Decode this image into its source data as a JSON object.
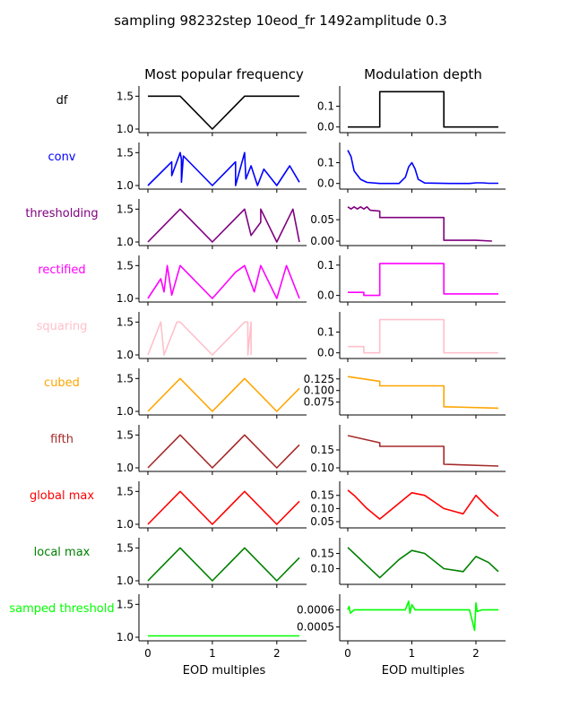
{
  "suptitle": "sampling 98232step 10eod_fr 1492amplitude 0.3",
  "columns": [
    "Most popular frequency",
    "Modulation depth"
  ],
  "xlabel": "EOD multiples",
  "chart_data": {
    "type": "line",
    "x_range": [
      0,
      2.35
    ],
    "x_ticks": [
      "0",
      "1",
      "2"
    ],
    "rows": [
      {
        "name": "df",
        "color": "#000000",
        "freq": {
          "y_ticks": [
            "1.0",
            "1.5"
          ],
          "ylim": [
            1.0,
            1.6
          ],
          "series": {
            "x": [
              0,
              0.5,
              1.0,
              1.5,
              2.35
            ],
            "y": [
              1.5,
              1.5,
              1.0,
              1.5,
              1.5
            ]
          }
        },
        "mod": {
          "y_ticks": [
            "0.0",
            "0.1"
          ],
          "ylim": [
            -0.01,
            0.18
          ],
          "series": {
            "x": [
              0,
              0.5,
              0.5,
              1.5,
              1.5,
              2.35
            ],
            "y": [
              0,
              0,
              0.17,
              0.17,
              0,
              0
            ]
          }
        }
      },
      {
        "name": "conv",
        "color": "#0000ff",
        "freq": {
          "y_ticks": [
            "1.0",
            "1.5"
          ],
          "ylim": [
            1.0,
            1.6
          ],
          "series": {
            "x": [
              0,
              0.37,
              0.37,
              0.5,
              0.52,
              0.52,
              0.55,
              1.0,
              1.36,
              1.36,
              1.5,
              1.52,
              1.6,
              1.7,
              1.8,
              2.0,
              2.2,
              2.35
            ],
            "y": [
              1.0,
              1.36,
              1.15,
              1.5,
              1.4,
              1.05,
              1.45,
              1.0,
              1.36,
              1.0,
              1.5,
              1.1,
              1.3,
              1.0,
              1.25,
              1.0,
              1.3,
              1.05
            ]
          }
        },
        "mod": {
          "y_ticks": [
            "0.0",
            "0.1"
          ],
          "ylim": [
            -0.01,
            0.18
          ],
          "series": {
            "x": [
              0,
              0.05,
              0.1,
              0.2,
              0.3,
              0.5,
              0.8,
              0.9,
              0.95,
              1.0,
              1.05,
              1.1,
              1.2,
              1.6,
              1.9,
              2.0,
              2.1,
              2.2,
              2.35
            ],
            "y": [
              0.16,
              0.13,
              0.06,
              0.02,
              0.005,
              0.0,
              0.0,
              0.03,
              0.08,
              0.1,
              0.07,
              0.02,
              0.002,
              0.0,
              0.0,
              0.003,
              0.003,
              0.001,
              0.001
            ]
          }
        }
      },
      {
        "name": "thresholding",
        "color": "#800080",
        "freq": {
          "y_ticks": [
            "1.0",
            "1.5"
          ],
          "ylim": [
            1.0,
            1.6
          ],
          "series": {
            "x": [
              0,
              0.5,
              1.0,
              1.5,
              1.6,
              1.75,
              1.75,
              2.0,
              2.25,
              2.35
            ],
            "y": [
              1.0,
              1.5,
              1.0,
              1.5,
              1.1,
              1.3,
              1.5,
              1.0,
              1.5,
              1.0
            ]
          }
        },
        "mod": {
          "y_ticks": [
            "0.00",
            "0.05"
          ],
          "ylim": [
            -0.002,
            0.09
          ],
          "series": {
            "x": [
              0,
              0.05,
              0.1,
              0.15,
              0.2,
              0.25,
              0.3,
              0.35,
              0.5,
              0.5,
              1.5,
              1.5,
              1.6,
              2.0,
              2.25
            ],
            "y": [
              0.08,
              0.075,
              0.08,
              0.075,
              0.08,
              0.075,
              0.08,
              0.072,
              0.07,
              0.055,
              0.055,
              0.002,
              0.002,
              0.002,
              0.0
            ]
          }
        }
      },
      {
        "name": "rectified",
        "color": "#ff00ff",
        "freq": {
          "y_ticks": [
            "1.0",
            "1.5"
          ],
          "ylim": [
            1.0,
            1.6
          ],
          "series": {
            "x": [
              0,
              0.2,
              0.25,
              0.3,
              0.37,
              0.5,
              1.0,
              1.36,
              1.5,
              1.65,
              1.75,
              2.0,
              2.15,
              2.35
            ],
            "y": [
              1.0,
              1.3,
              1.1,
              1.5,
              1.05,
              1.5,
              1.0,
              1.4,
              1.5,
              1.1,
              1.5,
              1.0,
              1.5,
              1.0
            ]
          }
        },
        "mod": {
          "y_ticks": [
            "0.0",
            "0.1"
          ],
          "ylim": [
            -0.01,
            0.12
          ],
          "series": {
            "x": [
              0,
              0.25,
              0.25,
              0.5,
              0.5,
              1.5,
              1.5,
              2.0,
              2.35
            ],
            "y": [
              0.01,
              0.01,
              0.0,
              0.0,
              0.105,
              0.105,
              0.005,
              0.005,
              0.005
            ]
          }
        }
      },
      {
        "name": "squaring",
        "color": "#ffc0cb",
        "freq": {
          "y_ticks": [
            "1.0",
            "1.5"
          ],
          "ylim": [
            1.0,
            1.6
          ],
          "series": {
            "x": [
              0,
              0.2,
              0.25,
              0.25,
              0.45,
              0.5,
              1.0,
              1.5,
              1.55,
              1.55,
              1.6,
              1.6,
              1.6
            ],
            "y": [
              1.0,
              1.5,
              1.0,
              1.0,
              1.5,
              1.5,
              1.0,
              1.5,
              1.5,
              1.0,
              1.5,
              1.0,
              1.0
            ]
          }
        },
        "mod": {
          "y_ticks": [
            "0.0",
            "0.1"
          ],
          "ylim": [
            -0.01,
            0.18
          ],
          "series": {
            "x": [
              0,
              0.25,
              0.25,
              0.5,
              0.5,
              1.5,
              1.5,
              2.35
            ],
            "y": [
              0.03,
              0.03,
              0.0,
              0.0,
              0.16,
              0.16,
              0.0,
              0.0
            ]
          }
        }
      },
      {
        "name": "cubed",
        "color": "#ffa500",
        "freq": {
          "y_ticks": [
            "1.0",
            "1.5"
          ],
          "ylim": [
            1.0,
            1.6
          ],
          "series": {
            "x": [
              0,
              0.5,
              1.0,
              1.5,
              2.0,
              2.35
            ],
            "y": [
              1.0,
              1.5,
              1.0,
              1.5,
              1.0,
              1.35
            ]
          }
        },
        "mod": {
          "y_ticks": [
            "0.075",
            "0.100",
            "0.125"
          ],
          "ylim": [
            0.055,
            0.14
          ],
          "series": {
            "x": [
              0,
              0.25,
              0.5,
              0.5,
              1.5,
              1.5,
              2.35
            ],
            "y": [
              0.13,
              0.125,
              0.12,
              0.11,
              0.11,
              0.065,
              0.062
            ]
          }
        }
      },
      {
        "name": "fifth",
        "color": "#a52a2a",
        "freq": {
          "y_ticks": [
            "1.0",
            "1.5"
          ],
          "ylim": [
            1.0,
            1.6
          ],
          "series": {
            "x": [
              0,
              0.5,
              1.0,
              1.5,
              2.0,
              2.35
            ],
            "y": [
              1.0,
              1.5,
              1.0,
              1.5,
              1.0,
              1.35
            ]
          }
        },
        "mod": {
          "y_ticks": [
            "0.10",
            "0.15"
          ],
          "ylim": [
            0.1,
            0.21
          ],
          "series": {
            "x": [
              0,
              0.25,
              0.5,
              0.5,
              1.5,
              1.5,
              2.35
            ],
            "y": [
              0.19,
              0.18,
              0.17,
              0.16,
              0.16,
              0.11,
              0.105
            ]
          }
        }
      },
      {
        "name": "global max",
        "color": "#ff0000",
        "freq": {
          "y_ticks": [
            "1.0",
            "1.5"
          ],
          "ylim": [
            1.0,
            1.6
          ],
          "series": {
            "x": [
              0,
              0.5,
              1.0,
              1.5,
              2.0,
              2.35
            ],
            "y": [
              1.0,
              1.5,
              1.0,
              1.5,
              1.0,
              1.35
            ]
          }
        },
        "mod": {
          "y_ticks": [
            "0.05",
            "0.10",
            "0.15"
          ],
          "ylim": [
            0.04,
            0.19
          ],
          "series": {
            "x": [
              0,
              0.1,
              0.3,
              0.5,
              0.8,
              1.0,
              1.2,
              1.5,
              1.8,
              2.0,
              2.2,
              2.35
            ],
            "y": [
              0.17,
              0.15,
              0.1,
              0.06,
              0.12,
              0.16,
              0.15,
              0.1,
              0.08,
              0.15,
              0.1,
              0.07
            ]
          }
        }
      },
      {
        "name": "local max",
        "color": "#008000",
        "freq": {
          "y_ticks": [
            "1.0",
            "1.5"
          ],
          "ylim": [
            1.0,
            1.6
          ],
          "series": {
            "x": [
              0,
              0.5,
              1.0,
              1.5,
              2.0,
              2.35
            ],
            "y": [
              1.0,
              1.5,
              1.0,
              1.5,
              1.0,
              1.35
            ]
          }
        },
        "mod": {
          "y_ticks": [
            "0.10",
            "0.15"
          ],
          "ylim": [
            0.06,
            0.19
          ],
          "series": {
            "x": [
              0,
              0.1,
              0.3,
              0.5,
              0.8,
              1.0,
              1.2,
              1.5,
              1.8,
              2.0,
              2.2,
              2.35
            ],
            "y": [
              0.17,
              0.15,
              0.11,
              0.07,
              0.13,
              0.16,
              0.15,
              0.1,
              0.09,
              0.14,
              0.12,
              0.09
            ]
          }
        }
      },
      {
        "name": "samped threshold",
        "color": "#00ff00",
        "freq": {
          "y_ticks": [
            "1.0",
            "1.5"
          ],
          "ylim": [
            1.0,
            1.6
          ],
          "series": {
            "x": [
              0,
              2.35
            ],
            "y": [
              1.02,
              1.02
            ]
          }
        },
        "mod": {
          "y_ticks": [
            "0.0005",
            "0.0006"
          ],
          "ylim": [
            0.00044,
            0.00067
          ],
          "series": {
            "x": [
              0,
              0.02,
              0.04,
              0.1,
              0.9,
              0.95,
              0.97,
              1.0,
              1.05,
              1.9,
              1.98,
              2.0,
              2.02,
              2.1,
              2.35
            ],
            "y": [
              0.0006,
              0.00062,
              0.00058,
              0.0006,
              0.0006,
              0.00065,
              0.00058,
              0.00063,
              0.0006,
              0.0006,
              0.00048,
              0.00064,
              0.00059,
              0.0006,
              0.0006
            ]
          }
        }
      }
    ]
  }
}
